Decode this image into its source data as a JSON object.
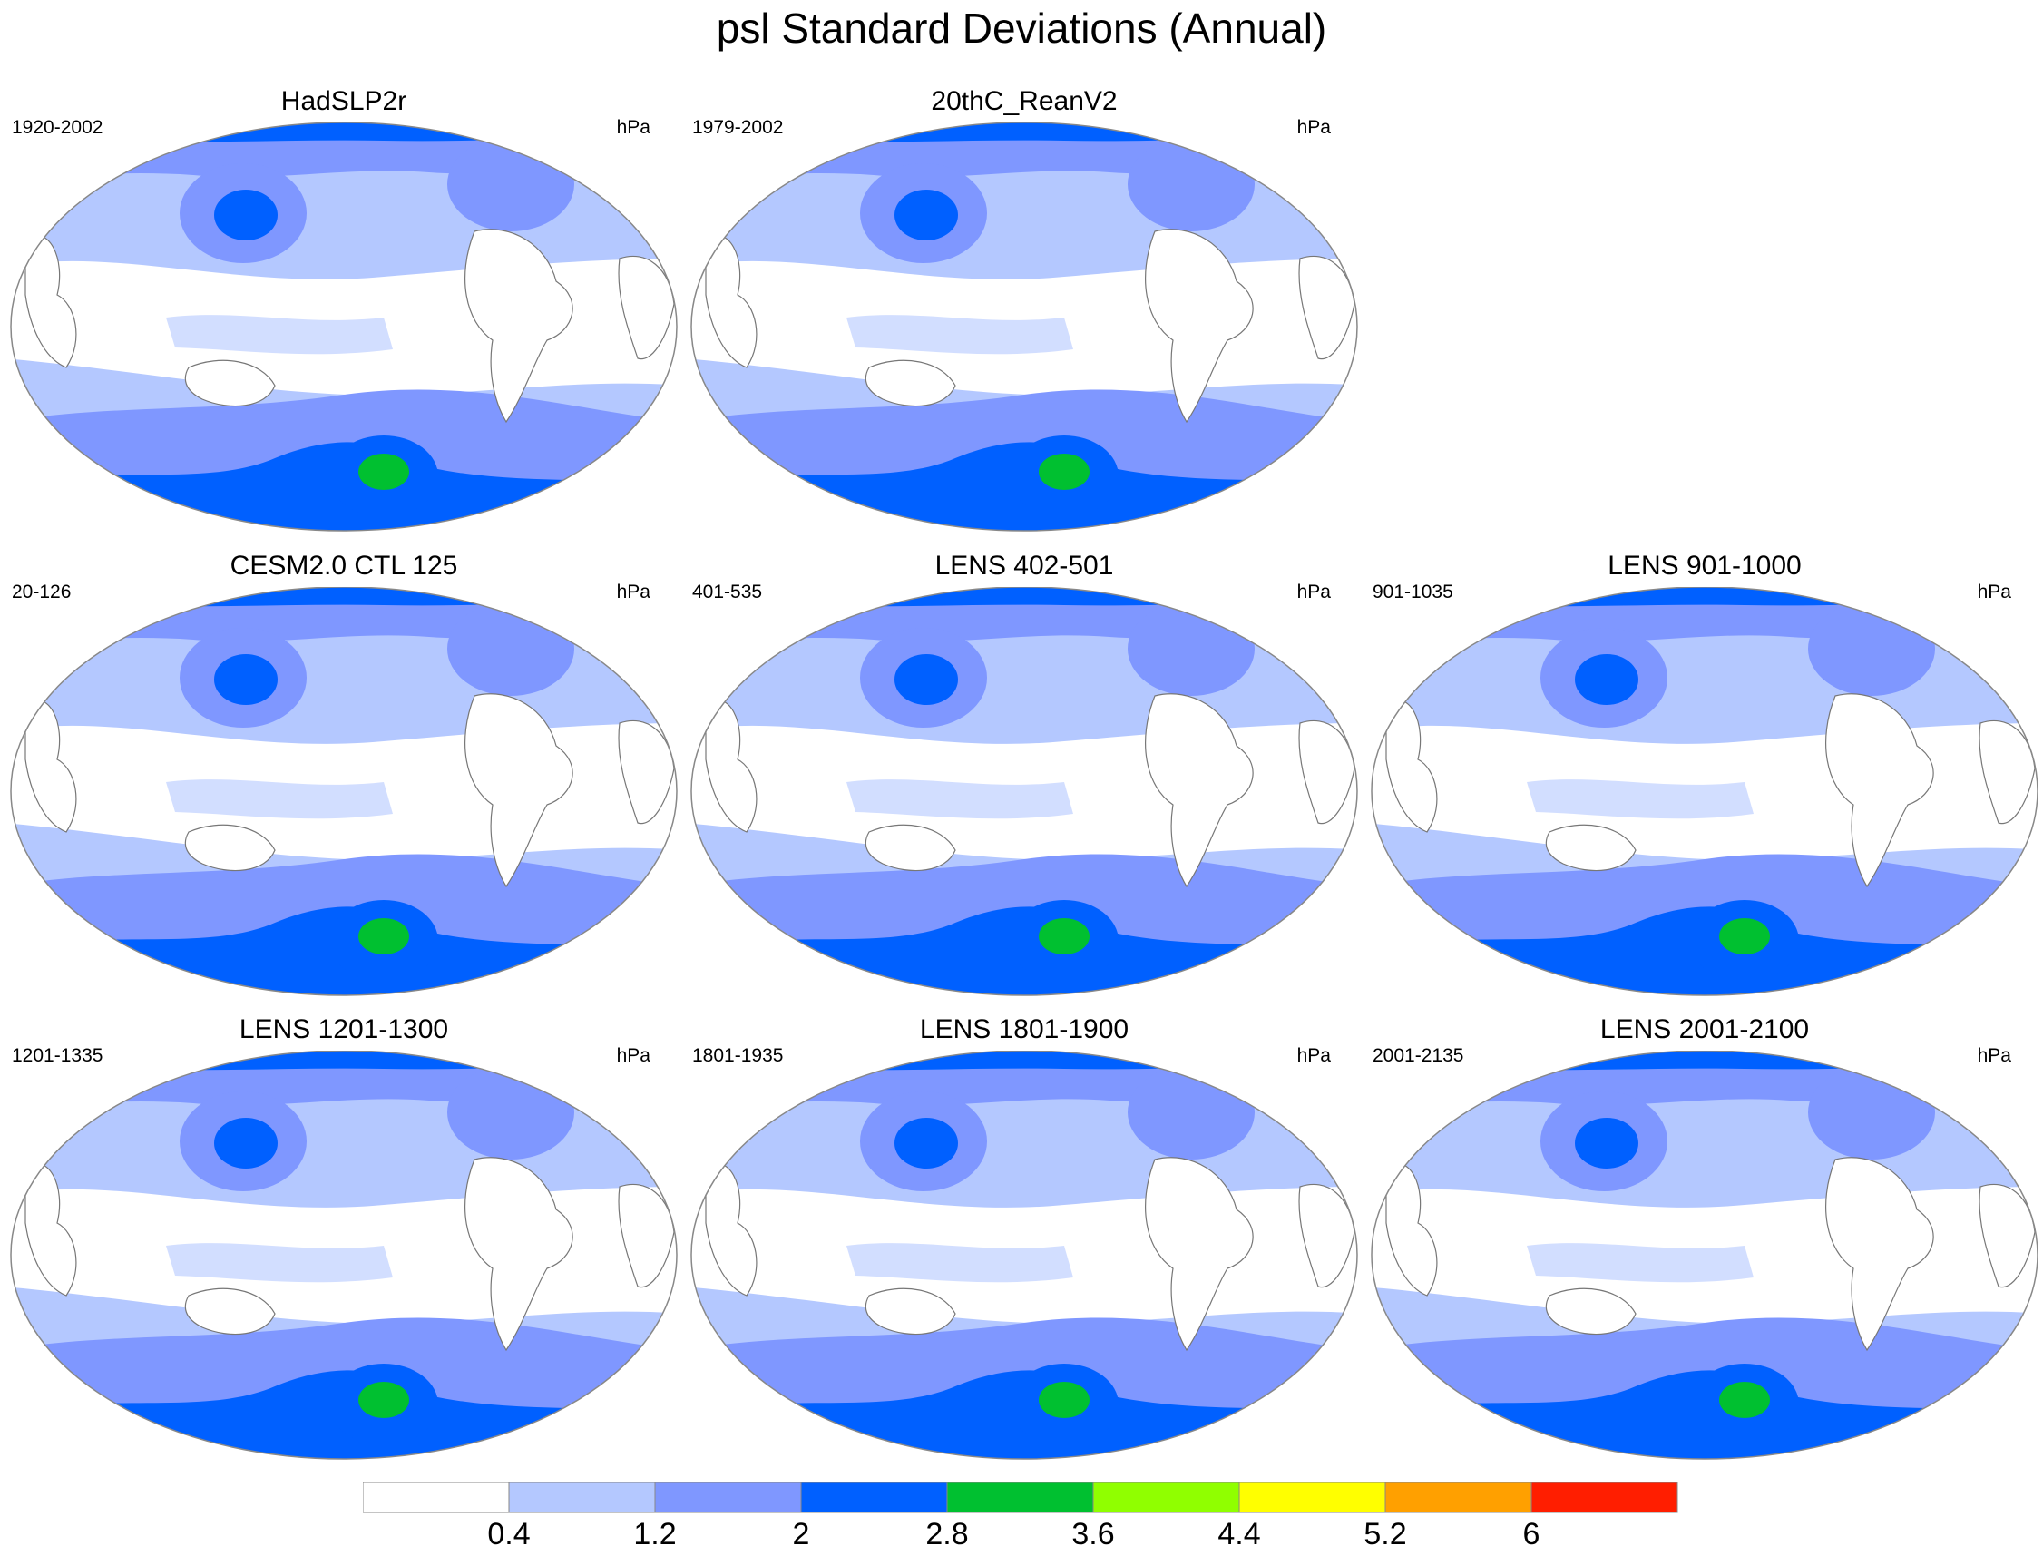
{
  "title": "psl Standard Deviations (Annual)",
  "units": "hPa",
  "colors": {
    "c0": "#ffffff",
    "c1": "#b4c8ff",
    "c2": "#7f97ff",
    "c3": "#0060ff",
    "c4": "#00c030",
    "c5": "#90ff00",
    "c6": "#ffff00",
    "c7": "#ffa000",
    "c8": "#ff1e00",
    "land_outline": "#777777",
    "border": "#888888"
  },
  "panels": [
    {
      "title": "HadSLP2r",
      "period": "1920-2002",
      "units": "hPa"
    },
    {
      "title": "20thC_ReanV2",
      "period": "1979-2002",
      "units": "hPa"
    },
    {
      "title": "CESM2.0 CTL 125",
      "period": "20-126",
      "units": "hPa"
    },
    {
      "title": "LENS 402-501",
      "period": "401-535",
      "units": "hPa"
    },
    {
      "title": "LENS 901-1000",
      "period": "901-1035",
      "units": "hPa"
    },
    {
      "title": "LENS 1201-1300",
      "period": "1201-1335",
      "units": "hPa"
    },
    {
      "title": "LENS 1801-1900",
      "period": "1801-1935",
      "units": "hPa"
    },
    {
      "title": "LENS 2001-2100",
      "period": "2001-2135",
      "units": "hPa"
    }
  ],
  "colorbar": {
    "labels": [
      "0.4",
      "1.2",
      "2",
      "2.8",
      "3.6",
      "4.4",
      "5.2",
      "6"
    ],
    "colors": [
      "#ffffff",
      "#b4c8ff",
      "#7f97ff",
      "#0060ff",
      "#00c030",
      "#90ff00",
      "#ffff00",
      "#ffa000",
      "#ff1e00"
    ]
  }
}
